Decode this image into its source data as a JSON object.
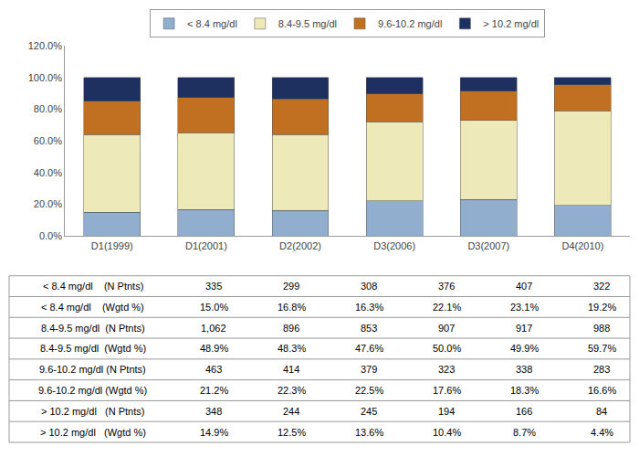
{
  "chart_data": {
    "type": "bar",
    "stacked": true,
    "categories": [
      "D1(1999)",
      "D1(2001)",
      "D2(2002)",
      "D3(2006)",
      "D3(2007)",
      "D4(2010)"
    ],
    "series": [
      {
        "name": "< 8.4 mg/dl",
        "color": "#92AECF",
        "values": [
          15.0,
          16.8,
          16.3,
          22.1,
          23.1,
          19.2
        ]
      },
      {
        "name": "8.4-9.5 mg/dl",
        "color": "#EDE9B8",
        "values": [
          48.9,
          48.3,
          47.6,
          50.0,
          49.9,
          59.7
        ]
      },
      {
        "name": "9.6-10.2 mg/dl",
        "color": "#C07020",
        "values": [
          21.2,
          22.3,
          22.5,
          17.6,
          18.3,
          16.6
        ]
      },
      {
        "name": "> 10.2 mg/dl",
        "color": "#1E3060",
        "values": [
          14.9,
          12.5,
          13.6,
          10.4,
          8.7,
          4.4
        ]
      }
    ],
    "ylim": [
      0,
      120
    ],
    "yticks": [
      {
        "value": 0,
        "label": "0.0%"
      },
      {
        "value": 20,
        "label": "20.0%"
      },
      {
        "value": 40,
        "label": "40.0%"
      },
      {
        "value": 60,
        "label": "60.0%"
      },
      {
        "value": 80,
        "label": "80.0%"
      },
      {
        "value": 100,
        "label": "100.0%"
      },
      {
        "value": 120,
        "label": "120.0%"
      }
    ],
    "grid": false,
    "legend": "top",
    "table": [
      {
        "label": "< 8.4 mg/dl    (N Ptnts)",
        "cells": [
          "335",
          "299",
          "308",
          "376",
          "407",
          "322"
        ]
      },
      {
        "label": "< 8.4 mg/dl    (Wgtd %)",
        "cells": [
          "15.0%",
          "16.8%",
          "16.3%",
          "22.1%",
          "23.1%",
          "19.2%"
        ]
      },
      {
        "label": "8.4-9.5 mg/dl  (N Ptnts)",
        "cells": [
          "1,062",
          "896",
          "853",
          "907",
          "917",
          "988"
        ]
      },
      {
        "label": "8.4-9.5 mg/dl  (Wgtd %)",
        "cells": [
          "48.9%",
          "48.3%",
          "47.6%",
          "50.0%",
          "49.9%",
          "59.7%"
        ]
      },
      {
        "label": "9.6-10.2 mg/dl (N Ptnts)",
        "cells": [
          "463",
          "414",
          "379",
          "323",
          "338",
          "283"
        ]
      },
      {
        "label": "9.6-10.2 mg/dl (Wgtd %)",
        "cells": [
          "21.2%",
          "22.3%",
          "22.5%",
          "17.6%",
          "18.3%",
          "16.6%"
        ]
      },
      {
        "label": "> 10.2 mg/dl   (N Ptnts)",
        "cells": [
          "348",
          "244",
          "245",
          "194",
          "166",
          "84"
        ]
      },
      {
        "label": "> 10.2 mg/dl   (Wgtd %)",
        "cells": [
          "14.9%",
          "12.5%",
          "13.6%",
          "10.4%",
          "8.7%",
          "4.4%"
        ]
      }
    ]
  }
}
